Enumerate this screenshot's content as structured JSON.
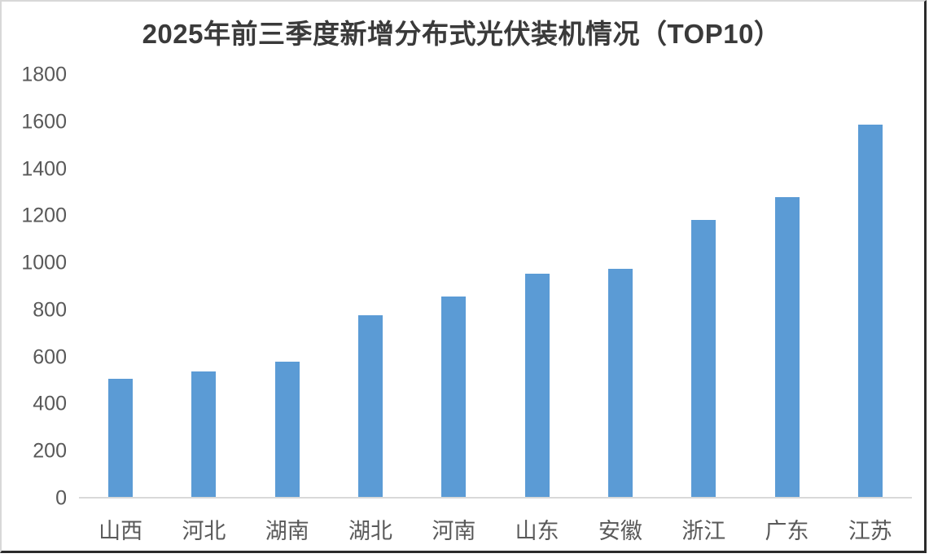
{
  "window": {
    "background": "#ffffff",
    "border_light_color": "#d8d8d8",
    "border_dark_color": "#2b2b2b"
  },
  "chart_data": {
    "type": "bar",
    "title": "2025年前三季度新增分布式光伏装机情况（TOP10）",
    "categories": [
      "山西",
      "河北",
      "湖南",
      "湖北",
      "河南",
      "山东",
      "安徽",
      "浙江",
      "广东",
      "江苏"
    ],
    "values": [
      510,
      540,
      580,
      780,
      860,
      955,
      975,
      1185,
      1280,
      1590
    ],
    "xlabel": "",
    "ylabel": "",
    "ylim": [
      0,
      1800
    ],
    "ytick_step": 200,
    "yticks": [
      0,
      200,
      400,
      600,
      800,
      1000,
      1200,
      1400,
      1600,
      1800
    ],
    "bar_color": "#5B9BD5",
    "axis_line_color": "#D9D9D9",
    "tick_label_color": "#595959",
    "title_color": "#3A3A3A",
    "grid": false,
    "legend": "none"
  }
}
